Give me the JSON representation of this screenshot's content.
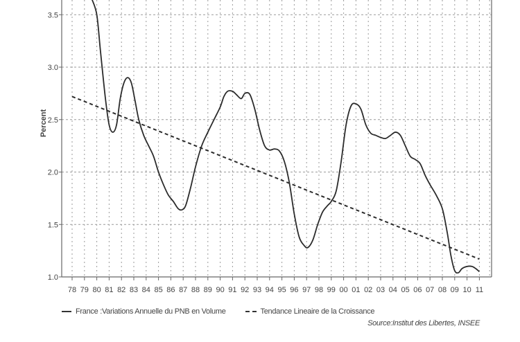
{
  "chart_data": {
    "type": "line",
    "title": "",
    "xlabel": "",
    "ylabel": "Percent",
    "ylim": [
      1.0,
      3.6
    ],
    "grid": true,
    "legend_position": "bottom",
    "y_ticks": [
      "1.0",
      "1.5",
      "2.0",
      "2.5",
      "3.0",
      "3.5"
    ],
    "categories": [
      "78",
      "79",
      "80",
      "81",
      "82",
      "83",
      "84",
      "85",
      "86",
      "87",
      "88",
      "89",
      "90",
      "91",
      "92",
      "93",
      "94",
      "95",
      "96",
      "97",
      "98",
      "99",
      "00",
      "01",
      "02",
      "03",
      "04",
      "05",
      "06",
      "07",
      "08",
      "09",
      "10",
      "11"
    ],
    "series": [
      {
        "name": "France :Variations Annuelle du PNB en Volume",
        "style": "solid",
        "x": [
          79.6,
          80.0,
          80.3,
          80.7,
          81.0,
          81.3,
          81.6,
          81.9,
          82.2,
          82.5,
          82.8,
          83.1,
          83.4,
          83.8,
          84.2,
          84.6,
          85.0,
          85.4,
          85.8,
          86.2,
          86.6,
          86.9,
          87.2,
          87.6,
          88.0,
          88.5,
          89.0,
          89.5,
          90.0,
          90.3,
          90.6,
          91.0,
          91.3,
          91.7,
          92.0,
          92.4,
          92.8,
          93.2,
          93.6,
          94.0,
          94.4,
          94.8,
          95.2,
          95.6,
          96.0,
          96.4,
          96.8,
          97.1,
          97.5,
          97.9,
          98.3,
          98.7,
          99.0,
          99.4,
          99.8,
          100.2,
          100.6,
          101.0,
          101.4,
          101.8,
          102.2,
          102.6,
          103.0,
          103.4,
          103.8,
          104.2,
          104.6,
          105.0,
          105.4,
          105.8,
          106.2,
          106.6,
          107.0,
          107.5,
          108.0,
          108.4,
          108.7,
          109.0,
          109.3,
          109.6,
          110.0,
          110.4,
          110.7,
          111.0
        ],
        "values": [
          3.65,
          3.5,
          3.15,
          2.7,
          2.45,
          2.38,
          2.45,
          2.7,
          2.85,
          2.9,
          2.85,
          2.68,
          2.5,
          2.35,
          2.25,
          2.15,
          2.0,
          1.88,
          1.78,
          1.72,
          1.65,
          1.64,
          1.68,
          1.85,
          2.05,
          2.25,
          2.38,
          2.5,
          2.62,
          2.72,
          2.77,
          2.77,
          2.74,
          2.7,
          2.75,
          2.74,
          2.6,
          2.4,
          2.25,
          2.21,
          2.22,
          2.2,
          2.1,
          1.9,
          1.6,
          1.38,
          1.3,
          1.28,
          1.35,
          1.5,
          1.62,
          1.68,
          1.72,
          1.82,
          2.1,
          2.45,
          2.63,
          2.65,
          2.6,
          2.45,
          2.37,
          2.35,
          2.33,
          2.32,
          2.35,
          2.38,
          2.35,
          2.25,
          2.15,
          2.12,
          2.08,
          1.97,
          1.88,
          1.78,
          1.65,
          1.42,
          1.2,
          1.06,
          1.04,
          1.08,
          1.1,
          1.1,
          1.08,
          1.05
        ]
      },
      {
        "name": "Tendance Lineaire de la Croissance",
        "style": "dashed",
        "x": [
          78.0,
          111.0
        ],
        "values": [
          2.72,
          1.17
        ]
      }
    ]
  },
  "axis": {
    "y_label": "Percent",
    "y_ticks": [
      "1.0",
      "1.5",
      "2.0",
      "2.5",
      "3.0",
      "3.5"
    ],
    "x_ticks": [
      "78",
      "79",
      "80",
      "81",
      "82",
      "83",
      "84",
      "85",
      "86",
      "87",
      "88",
      "89",
      "90",
      "91",
      "92",
      "93",
      "94",
      "95",
      "96",
      "97",
      "98",
      "99",
      "00",
      "01",
      "02",
      "03",
      "04",
      "05",
      "06",
      "07",
      "08",
      "09",
      "10",
      "11"
    ]
  },
  "legend": {
    "series_1": "France :Variations Annuelle du PNB en Volume",
    "series_2": "Tendance Lineaire de la Croissance"
  },
  "source": "Source:Institut des Libertes, INSEE",
  "colors": {
    "line": "#2b2b2b",
    "grid": "#9a9a9a",
    "axis": "#666666"
  }
}
